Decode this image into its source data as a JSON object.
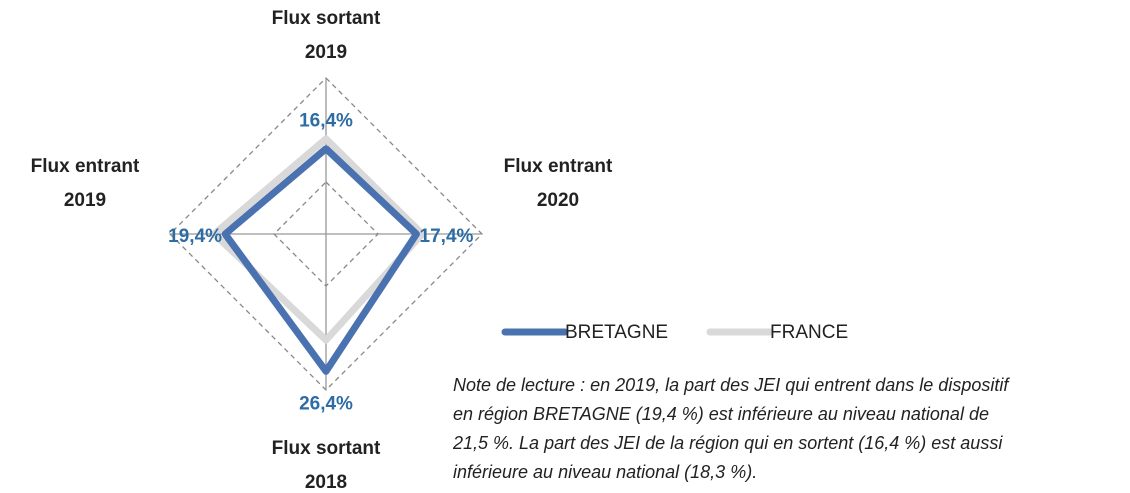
{
  "chart_data": {
    "type": "radar",
    "categories": [
      "Flux sortant 2019",
      "Flux entrant 2020",
      "Flux sortant 2018",
      "Flux entrant 2019"
    ],
    "series": [
      {
        "name": "BRETAGNE",
        "color": "#4a72b0",
        "values": [
          16.4,
          17.4,
          26.4,
          19.4
        ],
        "value_labels": [
          "16,4%",
          "17,4%",
          "26,4%",
          "19,4%"
        ]
      },
      {
        "name": "FRANCE",
        "color": "#d9d9d9",
        "values": [
          18.3,
          18.5,
          20.4,
          21.5
        ]
      }
    ],
    "ylim": [
      0,
      30
    ],
    "yticks": [
      10,
      30
    ],
    "grid": true,
    "note": [
      "Note de lecture : en 2019, la part des JEI qui entrent dans le dispositif",
      "en région BRETAGNE (19,4 %) est inférieure au niveau national de",
      "21,5 %. La part des JEI de la région qui en sortent (16,4 %) est aussi",
      "inférieure au niveau national (18,3 %)."
    ]
  }
}
